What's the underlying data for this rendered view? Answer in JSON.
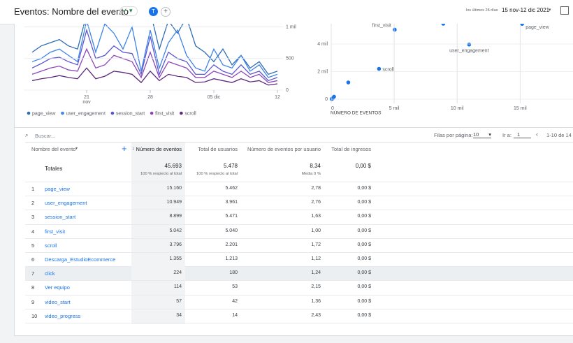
{
  "header": {
    "title": "Eventos: Nombre del evento",
    "avatar": "T",
    "range_hint": "los últimos 28 días",
    "date_range": "15 nov-12 dic 2021"
  },
  "line_chart": {
    "type": "line",
    "categories": [
      null,
      null,
      null,
      null,
      null,
      null,
      "21 nov",
      null,
      null,
      null,
      null,
      null,
      null,
      "28",
      null,
      null,
      null,
      null,
      null,
      null,
      "05 dic",
      null,
      null,
      null,
      null,
      null,
      null,
      "12"
    ],
    "ylim": [
      0,
      1150
    ],
    "yticks": [
      0,
      500,
      {
        "value": 1000,
        "label": "1 mil"
      }
    ],
    "series": [
      {
        "name": "page_view",
        "color": "#2f6db5",
        "values": [
          600,
          700,
          750,
          800,
          700,
          650,
          1200,
          1150,
          1050,
          1300,
          1200,
          1250,
          1100,
          1250,
          650,
          1100,
          900,
          1150,
          700,
          600,
          450,
          650,
          400,
          550,
          350,
          450,
          250,
          300
        ]
      },
      {
        "name": "user_engagement",
        "color": "#3d84e6",
        "values": [
          450,
          500,
          600,
          650,
          550,
          450,
          1100,
          600,
          1050,
          900,
          650,
          1000,
          300,
          950,
          350,
          750,
          950,
          550,
          350,
          300,
          650,
          400,
          350,
          550,
          300,
          400,
          200,
          250
        ]
      },
      {
        "name": "session_start",
        "color": "#5a55d2",
        "values": [
          350,
          420,
          500,
          520,
          450,
          400,
          950,
          500,
          550,
          700,
          600,
          580,
          250,
          850,
          250,
          600,
          500,
          450,
          250,
          250,
          400,
          300,
          250,
          400,
          250,
          300,
          150,
          200
        ]
      },
      {
        "name": "first_visit",
        "color": "#8d46b8",
        "values": [
          250,
          300,
          350,
          380,
          320,
          300,
          650,
          350,
          400,
          550,
          500,
          450,
          200,
          600,
          200,
          450,
          400,
          350,
          200,
          200,
          300,
          250,
          200,
          300,
          200,
          250,
          120,
          150
        ]
      },
      {
        "name": "scroll",
        "color": "#5b2a7a",
        "values": [
          150,
          180,
          200,
          230,
          200,
          180,
          350,
          180,
          220,
          300,
          280,
          250,
          120,
          300,
          150,
          250,
          220,
          200,
          120,
          130,
          180,
          150,
          120,
          180,
          130,
          150,
          80,
          100
        ]
      }
    ]
  },
  "scatter_chart": {
    "type": "scatter",
    "x_label": "NÚMERO DE EVENTOS",
    "color": "#1a73e8",
    "xlim": [
      0,
      19200
    ],
    "xticks": [
      0,
      {
        "value": 5000,
        "label": "5 mil"
      },
      {
        "value": 10000,
        "label": "10 mil"
      },
      {
        "value": 15000,
        "label": "15 mil"
      }
    ],
    "ylim": [
      0,
      5500
    ],
    "yticks": [
      0,
      {
        "value": 2000,
        "label": "2 mil"
      },
      {
        "value": 4000,
        "label": "4 mil"
      }
    ],
    "points": [
      {
        "label": "page_view",
        "x": 15160,
        "y": 5462
      },
      {
        "label": "user_engagement",
        "x": 10949,
        "y": 3961
      },
      {
        "x": 8899,
        "y": 5471
      },
      {
        "label": "first_visit",
        "x": 5042,
        "y": 5040
      },
      {
        "label": "scroll",
        "x": 3796,
        "y": 2201
      },
      {
        "x": 1355,
        "y": 1213
      },
      {
        "x": 224,
        "y": 180
      },
      {
        "x": 114,
        "y": 53
      },
      {
        "x": 57,
        "y": 42
      },
      {
        "x": 34,
        "y": 14
      }
    ]
  },
  "toolbar": {
    "search": "Buscar...",
    "rows_label": "Filas por página:",
    "rows_value": "10",
    "goto_label": "Ir a:",
    "goto_value": "1",
    "pagination": "1-10 de 14"
  },
  "table": {
    "columns": [
      "Nombre del evento",
      "Número de eventos",
      "Total de usuarios",
      "Número de eventos por usuario",
      "Total de ingresos"
    ],
    "totals": {
      "label": "Totales",
      "cells": [
        {
          "value": "45.693",
          "note": "100 % respecto al total"
        },
        {
          "value": "5.478",
          "note": "100 % respecto al total"
        },
        {
          "value": "8,34",
          "note": "Media 0 %"
        },
        {
          "value": "0,00 $"
        }
      ]
    },
    "rows": [
      [
        "1",
        "page_view",
        "15.160",
        "5.462",
        "2,78",
        "0,00 $"
      ],
      [
        "2",
        "user_engagement",
        "10.949",
        "3.961",
        "2,76",
        "0,00 $"
      ],
      [
        "3",
        "session_start",
        "8.899",
        "5.471",
        "1,63",
        "0,00 $"
      ],
      [
        "4",
        "first_visit",
        "5.042",
        "5.040",
        "1,00",
        "0,00 $"
      ],
      [
        "5",
        "scroll",
        "3.796",
        "2.201",
        "1,72",
        "0,00 $"
      ],
      [
        "6",
        "Descarga_EstudioEcommerce",
        "1.355",
        "1.213",
        "1,12",
        "0,00 $"
      ],
      [
        "7",
        "click",
        "224",
        "180",
        "1,24",
        "0,00 $"
      ],
      [
        "8",
        "Ver equipo",
        "114",
        "53",
        "2,15",
        "0,00 $"
      ],
      [
        "9",
        "video_start",
        "57",
        "42",
        "1,36",
        "0,00 $"
      ],
      [
        "10",
        "video_progress",
        "34",
        "14",
        "2,43",
        "0,00 $"
      ]
    ]
  }
}
